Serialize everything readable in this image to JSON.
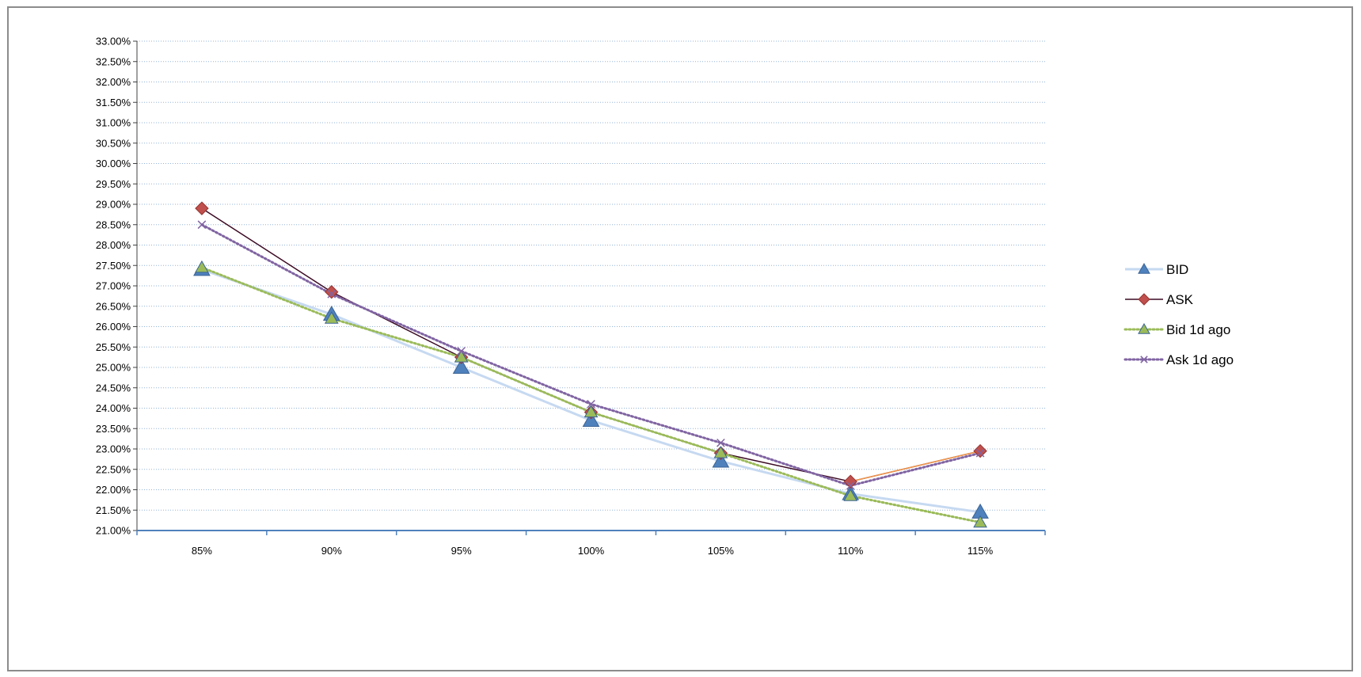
{
  "chart_data": {
    "type": "line",
    "title": "",
    "xlabel": "",
    "ylabel": "",
    "categories": [
      "85%",
      "90%",
      "95%",
      "100%",
      "105%",
      "110%",
      "115%"
    ],
    "ylim": [
      0.21,
      0.33
    ],
    "ytick_step": 0.005,
    "yticks": [
      "21.00%",
      "21.50%",
      "22.00%",
      "22.50%",
      "23.00%",
      "23.50%",
      "24.00%",
      "24.50%",
      "25.00%",
      "25.50%",
      "26.00%",
      "26.50%",
      "27.00%",
      "27.50%",
      "28.00%",
      "28.50%",
      "29.00%",
      "29.50%",
      "30.00%",
      "30.50%",
      "31.00%",
      "31.50%",
      "32.00%",
      "32.50%",
      "33.00%"
    ],
    "grid": true,
    "legend_position": "right",
    "series": [
      {
        "name": "BID",
        "values": [
          0.274,
          0.263,
          0.25,
          0.237,
          0.227,
          0.219,
          0.2145
        ],
        "color": "#c6d9f1",
        "marker": "triangle",
        "marker_color": "#4f81bd",
        "dash": "solid"
      },
      {
        "name": "ASK",
        "values": [
          0.289,
          0.2685,
          0.2525,
          0.239,
          0.229,
          0.222,
          0.2295
        ],
        "color": "#3b0a23",
        "marker": "diamond",
        "marker_color": "#c0504d",
        "dash": "solid"
      },
      {
        "name": "Bid 1d ago",
        "values": [
          0.2745,
          0.262,
          0.2525,
          0.239,
          0.229,
          0.2185,
          0.212
        ],
        "color": "#9bbb59",
        "marker": "triangle",
        "marker_color": "#9bbb59",
        "dash": "dotted"
      },
      {
        "name": "Ask 1d ago",
        "values": [
          0.285,
          0.268,
          0.254,
          0.241,
          0.2315,
          0.221,
          0.229
        ],
        "color": "#8064a2",
        "marker": "x",
        "marker_color": "#8064a2",
        "dash": "dotted"
      }
    ]
  }
}
